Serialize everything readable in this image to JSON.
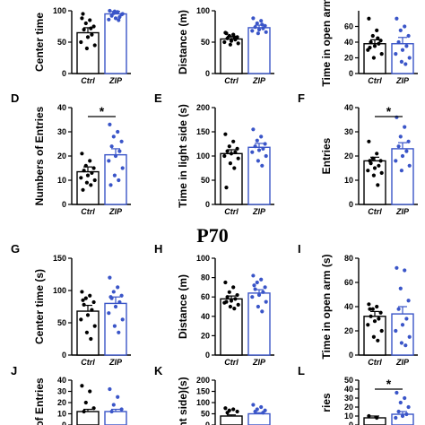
{
  "section_label": "P70",
  "colors": {
    "ctrl": "#000000",
    "zip": "#3a55c8",
    "axis": "#000000"
  },
  "chart_data": [
    {
      "letter": "",
      "type": "bar",
      "ylabel": "Center time",
      "ylim": [
        0,
        100
      ],
      "yticks": [
        0,
        50,
        100
      ],
      "categories": [
        "Ctrl",
        "ZIP"
      ],
      "means": [
        65,
        95
      ],
      "sem": [
        8,
        4
      ],
      "points": [
        [
          88,
          85,
          80,
          75,
          70,
          62,
          58,
          50,
          45,
          40,
          72,
          95
        ],
        [
          100,
          98,
          96,
          94,
          92,
          90,
          88,
          86,
          95,
          99,
          85
        ]
      ],
      "significance": null
    },
    {
      "letter": "",
      "type": "bar",
      "ylabel": "Distance (m)",
      "ylim": [
        0,
        100
      ],
      "yticks": [
        0,
        50,
        100
      ],
      "categories": [
        "Ctrl",
        "ZIP"
      ],
      "means": [
        55,
        73
      ],
      "sem": [
        4,
        4
      ],
      "points": [
        [
          65,
          62,
          60,
          58,
          56,
          54,
          52,
          50,
          48,
          46,
          58,
          64
        ],
        [
          88,
          84,
          80,
          76,
          74,
          72,
          70,
          68,
          66,
          64,
          78
        ]
      ],
      "significance": null
    },
    {
      "letter": "",
      "type": "bar",
      "ylabel": "Time in open arm",
      "ylim": [
        0,
        80
      ],
      "yticks": [
        0,
        20,
        40,
        60
      ],
      "categories": [
        "Ctrl",
        "ZIP"
      ],
      "means": [
        38,
        38
      ],
      "sem": [
        5,
        8
      ],
      "points": [
        [
          70,
          55,
          48,
          42,
          40,
          38,
          35,
          30,
          25,
          20,
          45,
          33
        ],
        [
          70,
          60,
          55,
          48,
          40,
          35,
          30,
          25,
          20,
          15,
          12
        ]
      ],
      "significance": null
    },
    {
      "letter": "D",
      "type": "bar",
      "ylabel": "Numbers of Entries",
      "ylim": [
        0,
        40
      ],
      "yticks": [
        0,
        10,
        20,
        30,
        40
      ],
      "categories": [
        "Ctrl",
        "ZIP"
      ],
      "means": [
        13.5,
        20.5
      ],
      "sem": [
        2,
        2.5
      ],
      "points": [
        [
          21,
          18,
          16,
          15,
          14,
          13,
          12,
          11,
          10,
          9,
          8,
          6
        ],
        [
          33,
          30,
          28,
          26,
          24,
          22,
          20,
          18,
          15,
          12,
          10,
          8
        ]
      ],
      "significance": "*"
    },
    {
      "letter": "E",
      "type": "bar",
      "ylabel": "Time in light side (s)",
      "ylim": [
        0,
        200
      ],
      "yticks": [
        0,
        50,
        100,
        150,
        200
      ],
      "categories": [
        "Ctrl",
        "ZIP"
      ],
      "means": [
        105,
        118
      ],
      "sem": [
        8,
        8
      ],
      "points": [
        [
          145,
          130,
          120,
          115,
          110,
          108,
          105,
          100,
          95,
          85,
          75,
          35
        ],
        [
          155,
          140,
          132,
          125,
          120,
          115,
          112,
          108,
          100,
          90,
          80
        ]
      ],
      "significance": null
    },
    {
      "letter": "F",
      "type": "bar",
      "ylabel": "Entries",
      "ylim": [
        0,
        40
      ],
      "yticks": [
        0,
        10,
        20,
        30,
        40
      ],
      "categories": [
        "Ctrl",
        "ZIP"
      ],
      "means": [
        18,
        23
      ],
      "sem": [
        1.5,
        2.5
      ],
      "points": [
        [
          26,
          21,
          19,
          18,
          17,
          16,
          15,
          14,
          13,
          12,
          8,
          18
        ],
        [
          36,
          32,
          28,
          26,
          24,
          22,
          20,
          18,
          16,
          14
        ]
      ],
      "significance": "*"
    },
    {
      "letter": "G",
      "type": "bar",
      "ylabel": "Center time (s)",
      "ylim": [
        0,
        150
      ],
      "yticks": [
        0,
        50,
        100,
        150
      ],
      "categories": [
        "Ctrl",
        "ZIP"
      ],
      "means": [
        68,
        80
      ],
      "sem": [
        9,
        10
      ],
      "points": [
        [
          98,
          92,
          88,
          82,
          78,
          70,
          62,
          55,
          45,
          35,
          25,
          85
        ],
        [
          120,
          105,
          98,
          92,
          88,
          82,
          75,
          65,
          55,
          45,
          35,
          90
        ]
      ],
      "significance": null
    },
    {
      "letter": "H",
      "type": "bar",
      "ylabel": "Distance (m)",
      "ylim": [
        0,
        100
      ],
      "yticks": [
        0,
        20,
        40,
        60,
        80,
        100
      ],
      "categories": [
        "Ctrl",
        "ZIP"
      ],
      "means": [
        58,
        64
      ],
      "sem": [
        3,
        3.5
      ],
      "points": [
        [
          75,
          70,
          65,
          62,
          60,
          58,
          56,
          54,
          52,
          50,
          48,
          55
        ],
        [
          82,
          78,
          75,
          70,
          68,
          65,
          62,
          60,
          55,
          50,
          45,
          72
        ]
      ],
      "significance": null
    },
    {
      "letter": "I",
      "type": "bar",
      "ylabel": "Time in open arm (s)",
      "ylim": [
        0,
        80
      ],
      "yticks": [
        0,
        20,
        40,
        60,
        80
      ],
      "categories": [
        "Ctrl",
        "ZIP"
      ],
      "means": [
        32,
        34
      ],
      "sem": [
        4,
        6
      ],
      "points": [
        [
          42,
          40,
          38,
          35,
          32,
          30,
          28,
          25,
          20,
          15,
          12,
          38
        ],
        [
          72,
          70,
          55,
          45,
          38,
          30,
          25,
          20,
          15,
          10,
          8
        ]
      ],
      "significance": null
    },
    {
      "letter": "J",
      "type": "bar",
      "ylabel": "of Entries",
      "ylim": [
        0,
        40
      ],
      "yticks": [
        0,
        10,
        20,
        30,
        40
      ],
      "categories": [
        "Ctrl",
        "ZIP"
      ],
      "means": [
        12,
        12
      ],
      "sem": [
        2,
        2
      ],
      "points": [
        [
          35,
          30,
          20,
          15,
          12
        ],
        [
          32,
          25,
          18,
          14,
          12
        ]
      ],
      "significance": null
    },
    {
      "letter": "K",
      "type": "bar",
      "ylabel": "ht side)(s)",
      "ylim": [
        0,
        200
      ],
      "yticks": [
        0,
        50,
        100,
        150,
        200
      ],
      "categories": [
        "Ctrl",
        "ZIP"
      ],
      "means": [
        40,
        50
      ],
      "sem": [
        5,
        5
      ],
      "points": [
        [
          75,
          70,
          65,
          60,
          55
        ],
        [
          90,
          80,
          70,
          65,
          60,
          55
        ]
      ],
      "significance": null
    },
    {
      "letter": "L",
      "type": "bar",
      "ylabel": "ries",
      "ylim": [
        0,
        50
      ],
      "yticks": [
        0,
        10,
        20,
        30,
        40,
        50
      ],
      "categories": [
        "Ctrl",
        "ZIP"
      ],
      "means": [
        8,
        12
      ],
      "sem": [
        2,
        3
      ],
      "points": [
        [
          10,
          8
        ],
        [
          36,
          30,
          25,
          20,
          15,
          12,
          10,
          8
        ]
      ],
      "significance": "*"
    }
  ]
}
